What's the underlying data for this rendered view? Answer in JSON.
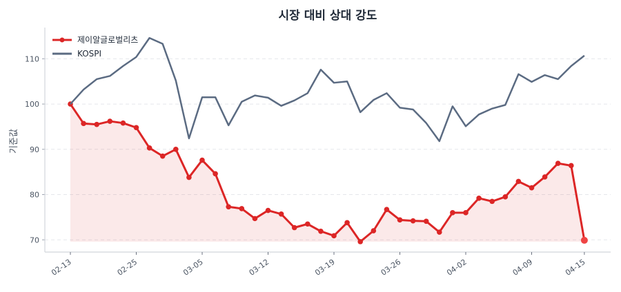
{
  "chart_data": {
    "type": "line",
    "title": "시장 대비 상대 강도",
    "xlabel": "",
    "ylabel": "기준값",
    "ylim": [
      67.3,
      116.9
    ],
    "yticks": [
      70,
      80,
      90,
      100,
      110
    ],
    "grid": true,
    "legend_position": "top-left",
    "x_tick_labels": [
      {
        "index": 0,
        "label": "02-13"
      },
      {
        "index": 5,
        "label": "02-25"
      },
      {
        "index": 10,
        "label": "03-05"
      },
      {
        "index": 15,
        "label": "03-12"
      },
      {
        "index": 20,
        "label": "03-19"
      },
      {
        "index": 25,
        "label": "03-26"
      },
      {
        "index": 30,
        "label": "04-02"
      },
      {
        "index": 35,
        "label": "04-09"
      },
      {
        "index": 39,
        "label": "04-15"
      }
    ],
    "series": [
      {
        "name": "제이알글로벌리츠",
        "color": "#dc2626",
        "markers": true,
        "fill": true,
        "values": [
          100,
          95.7,
          95.5,
          96.2,
          95.8,
          94.8,
          90.3,
          88.5,
          90.0,
          83.8,
          87.6,
          84.6,
          77.3,
          76.9,
          74.7,
          76.5,
          75.7,
          72.7,
          73.5,
          71.9,
          70.9,
          73.8,
          69.6,
          72.0,
          76.7,
          74.4,
          74.2,
          74.1,
          71.7,
          76.0,
          76.0,
          79.2,
          78.5,
          79.5,
          82.9,
          81.5,
          83.9,
          86.9,
          86.4,
          69.9
        ]
      },
      {
        "name": "KOSPI",
        "color": "#5b6b82",
        "markers": false,
        "fill": false,
        "values": [
          100,
          103.2,
          105.5,
          106.2,
          108.4,
          110.4,
          114.6,
          113.3,
          105.2,
          92.4,
          101.5,
          101.5,
          95.3,
          100.5,
          101.9,
          101.4,
          99.6,
          100.8,
          102.4,
          107.6,
          104.7,
          105.0,
          98.2,
          100.9,
          102.4,
          99.2,
          98.8,
          95.8,
          91.8,
          99.5,
          95.1,
          97.7,
          99.0,
          99.8,
          106.6,
          104.9,
          106.4,
          105.5,
          108.4,
          110.7
        ]
      }
    ]
  }
}
